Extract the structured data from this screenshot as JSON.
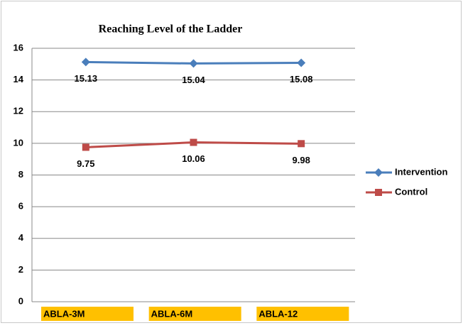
{
  "chart_data": {
    "type": "line",
    "title": "Reaching Level of the Ladder",
    "categories": [
      "ABLA-3M",
      "ABLA-6M",
      "ABLA-12"
    ],
    "series": [
      {
        "name": "Intervention",
        "color": "#4a7ebb",
        "values": [
          15.13,
          15.04,
          15.08
        ]
      },
      {
        "name": "Control",
        "color": "#be4b48",
        "values": [
          9.75,
          10.06,
          9.98
        ]
      }
    ],
    "ylim": [
      0,
      16
    ],
    "yticks": [
      0,
      2,
      4,
      6,
      8,
      10,
      12,
      14,
      16
    ],
    "grid": true,
    "legend": "right"
  }
}
